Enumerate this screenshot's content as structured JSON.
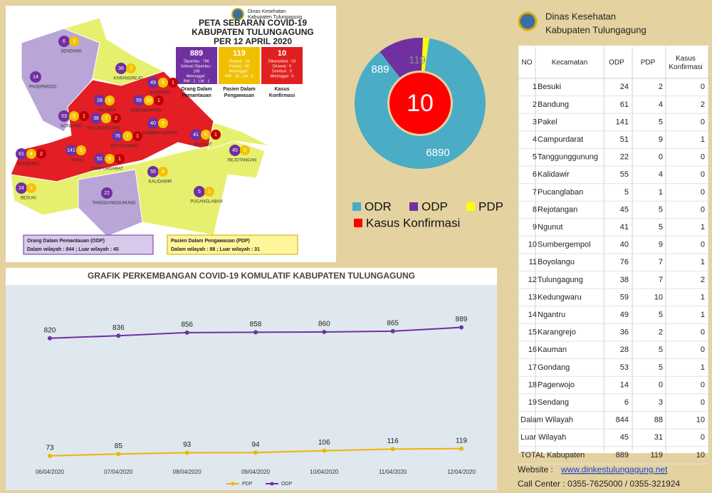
{
  "header": {
    "org": "Dinas Kesehatan",
    "region": "Kabupaten Tulungagung"
  },
  "map": {
    "title": [
      "PETA SEBARAN COVID-19",
      "KABUPATEN TULUNGAGUNG",
      "PER  12 APRIL 2020"
    ],
    "org": [
      "Dinas Kesehatan",
      "Kabupaten Tulungagung"
    ],
    "boxes": [
      {
        "details": [
          "Dipantau : 786",
          "Selesai Dipantau :",
          "100",
          "Meninggal :",
          "RW : 2 ; LW : 1"
        ],
        "caption": [
          "Orang Dalam",
          "Pemantauan"
        ]
      },
      {
        "details": [
          "Dirawat : 16",
          "Pulang : 66",
          "Meninggal :",
          "RW : 18 ; LW : 5"
        ],
        "caption": [
          "Pasien Dalam",
          "Pengawasan"
        ]
      },
      {
        "details": [
          "Dikarantina : 10",
          "Dirawat : 0",
          "Sembuh : 0",
          "Meninggal : 0"
        ],
        "caption": [
          "Kasus",
          "Konfirmasi"
        ]
      }
    ],
    "districts": [
      "BESUKI",
      "BANDUNG",
      "PAKEL",
      "CAMPURDARAT",
      "TANGGUNGGUNUNG",
      "KALIDAWIR",
      "PUCANGLABAN",
      "REJOTANGAN",
      "NGUNUT",
      "SUMBERGEMPOL",
      "BOYOLANGU",
      "TULUNGAGUNG",
      "KEDUNGWARU",
      "NGANTRU",
      "KARANGREJO",
      "KAUMAN",
      "GONDANG",
      "PAGERWOJO",
      "SENDANG"
    ],
    "legend": [
      {
        "title": "Orang Dalam Pemantauan (ODP)",
        "text": "Dalam wilayah : 844 ; Luar wilayah : 45"
      },
      {
        "title": "Pasien Dalam Pengawasan (PDP)",
        "text": "Dalam wilayah : 88 ; Luar wilayah : 31"
      }
    ]
  },
  "chart_data": [
    {
      "type": "donut",
      "categories": [
        "ODR",
        "ODP",
        "PDP",
        "Kasus Konfirmasi"
      ],
      "values": [
        6890,
        889,
        119,
        10
      ],
      "colors": [
        "#4bacc6",
        "#7030a0",
        "#ffff00",
        "#ff0000"
      ]
    },
    {
      "type": "line",
      "title": "GRAFIK PERKEMBANGAN COVID-19 KOMULATIF KABUPATEN TULUNGAGUNG",
      "categories": [
        "06/04/2020",
        "07/04/2020",
        "08/04/2020",
        "09/04/2020",
        "10/04/2020",
        "11/04/2020",
        "12/04/2020"
      ],
      "series": [
        {
          "name": "PDP",
          "color": "#f0b400",
          "values": [
            73,
            85,
            93,
            94,
            106,
            116,
            119
          ]
        },
        {
          "name": "ODP",
          "color": "#7030a0",
          "values": [
            820,
            836,
            856,
            858,
            860,
            865,
            889
          ]
        }
      ],
      "ylim": [
        0,
        1000
      ]
    }
  ],
  "table": {
    "columns": [
      "NO",
      "Kecamatan",
      "ODP",
      "PDP",
      "Kasus Konfirmasi"
    ],
    "rows": [
      [
        1,
        "Besuki",
        24,
        2,
        0
      ],
      [
        2,
        "Bandung",
        61,
        4,
        2
      ],
      [
        3,
        "Pakel",
        141,
        5,
        0
      ],
      [
        4,
        "Campurdarat",
        51,
        9,
        1
      ],
      [
        5,
        "Tanggunggunung",
        22,
        0,
        0
      ],
      [
        6,
        "Kalidawir",
        55,
        4,
        0
      ],
      [
        7,
        "Pucanglaban",
        5,
        1,
        0
      ],
      [
        8,
        "Rejotangan",
        45,
        5,
        0
      ],
      [
        9,
        "Ngunut",
        41,
        5,
        1
      ],
      [
        10,
        "Sumbergempol",
        40,
        9,
        0
      ],
      [
        11,
        "Boyolangu",
        76,
        7,
        1
      ],
      [
        12,
        "Tulungagung",
        38,
        7,
        2
      ],
      [
        13,
        "Kedungwaru",
        59,
        10,
        1
      ],
      [
        14,
        "Ngantru",
        49,
        5,
        1
      ],
      [
        15,
        "Karangrejo",
        36,
        2,
        0
      ],
      [
        16,
        "Kauman",
        28,
        5,
        0
      ],
      [
        17,
        "Gondang",
        53,
        5,
        1
      ],
      [
        18,
        "Pagerwojo",
        14,
        0,
        0
      ],
      [
        19,
        "Sendang",
        6,
        3,
        0
      ]
    ],
    "summary": [
      [
        "Dalam Wilayah",
        844,
        88,
        10
      ],
      [
        "Luar Wilayah",
        45,
        31,
        0
      ],
      [
        "TOTAL Kabupaten",
        889,
        119,
        10
      ]
    ]
  },
  "footer": {
    "website_label": "Website :",
    "website": "www.dinkestulungagung.net",
    "call_center": "Call Center : 0355-7625000  / 0355-321924"
  }
}
